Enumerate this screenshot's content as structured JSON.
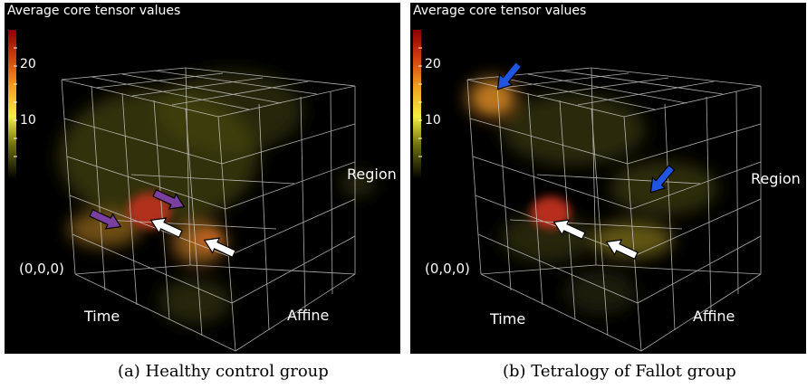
{
  "panels": [
    {
      "id": "a",
      "title": "Average core tensor values",
      "scale_ticks": [
        "20",
        "10"
      ],
      "axes": {
        "origin": "(0,0,0)",
        "x": "Time",
        "y": "Affine",
        "z": "Region"
      },
      "caption": "(a) Healthy control group",
      "arrows": [
        {
          "color": "purple",
          "dir": "down-right"
        },
        {
          "color": "purple",
          "dir": "down-right"
        },
        {
          "color": "white",
          "dir": "up-left"
        },
        {
          "color": "white",
          "dir": "up-left"
        }
      ]
    },
    {
      "id": "b",
      "title": "Average core tensor values",
      "scale_ticks": [
        "20",
        "10"
      ],
      "axes": {
        "origin": "(0,0,0)",
        "x": "Time",
        "y": "Affine",
        "z": "Region"
      },
      "caption": "(b) Tetralogy of Fallot group",
      "arrows": [
        {
          "color": "blue",
          "dir": "down-left"
        },
        {
          "color": "blue",
          "dir": "down-left"
        },
        {
          "color": "white",
          "dir": "up-left"
        },
        {
          "color": "white",
          "dir": "up-left"
        }
      ]
    }
  ],
  "colors": {
    "purple_arrow": "#7b3fa0",
    "blue_arrow": "#1f55e0",
    "white_arrow": "#ffffff"
  }
}
